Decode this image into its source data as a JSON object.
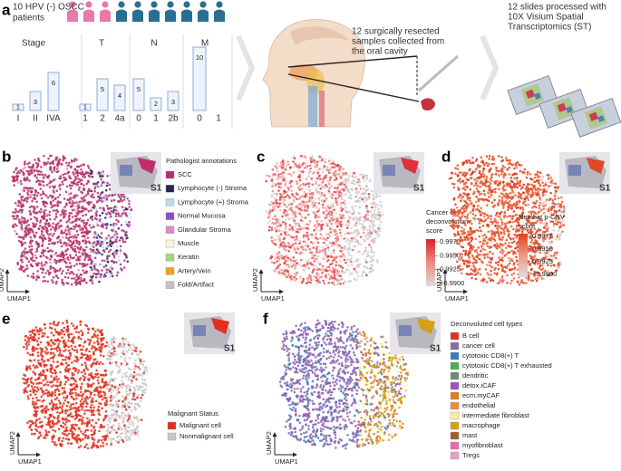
{
  "panel_labels": [
    "a",
    "b",
    "c",
    "d",
    "e",
    "f"
  ],
  "panel_a": {
    "patients": [
      "10 HPV (-) OSCC",
      "patients"
    ],
    "groups": [
      {
        "title": "Stage",
        "categories": [
          "I",
          "II",
          "IVA"
        ],
        "values": [
          1,
          3,
          6
        ]
      },
      {
        "title": "T",
        "categories": [
          "1",
          "2",
          "4a"
        ],
        "values": [
          1,
          5,
          4
        ]
      },
      {
        "title": "N",
        "categories": [
          "0",
          "1",
          "2b"
        ],
        "values": [
          5,
          2,
          3
        ]
      },
      {
        "title": "M",
        "categories": [
          "0",
          "1"
        ],
        "values": [
          10,
          null
        ]
      }
    ],
    "collection_text": [
      "12 surgically resected",
      "samples collected from",
      "the oral cavity"
    ],
    "slides_text": [
      "12 slides processed with",
      "10X Visium Spatial",
      "Transcriptomics (ST)"
    ]
  },
  "panel_b": {
    "inset_label": "S1",
    "legend_title": "Pathologist annotations",
    "legend": [
      {
        "name": "SCC",
        "color": "#b5306a"
      },
      {
        "name": "Lymphocyte (-) Stroma",
        "color": "#2b2552"
      },
      {
        "name": "Lymphocyte (+) Stroma",
        "color": "#bcdaf0"
      },
      {
        "name": "Normal Mucosa",
        "color": "#8a4fc0"
      },
      {
        "name": "Glandular Stroma",
        "color": "#d98cc8"
      },
      {
        "name": "Muscle",
        "color": "#fbf5df"
      },
      {
        "name": "Keratin",
        "color": "#9fd67f"
      },
      {
        "name": "Artery/Vein",
        "color": "#f2a11c"
      },
      {
        "name": "Fold/Artifact",
        "color": "#c2c2c2"
      }
    ],
    "axis_x": "UMAP1",
    "axis_y": "UMAP2"
  },
  "panel_c": {
    "inset_label": "S1",
    "colorbar_title": [
      "Cancer cell",
      "deconvolution",
      "score"
    ],
    "colorbar_ticks": [
      0.9975,
      {
        "value": 0.995,
        "label": "0.9950"
      },
      0.9925,
      {
        "value": 0.99,
        "label": "<0.9900"
      }
    ],
    "axis_x": "UMAP1",
    "axis_y": "UMAP2"
  },
  "panel_d": {
    "inset_label": "S1",
    "colorbar_title": [
      "Numbat p-CNV",
      "score"
    ],
    "colorbar_ticks": [
      0.9975,
      {
        "value": 0.995,
        "label": "0.9950"
      },
      0.9925,
      {
        "value": 0.99,
        "label": "<0.9900"
      }
    ],
    "axis_x": "UMAP1",
    "axis_y": "UMAP2"
  },
  "panel_e": {
    "inset_label": "S1",
    "legend_title": "Malignant Status",
    "legend": [
      {
        "name": "Malignant cell",
        "color": "#e0301e"
      },
      {
        "name": "Nonmalignant cell",
        "color": "#c8c8c8"
      }
    ],
    "axis_x": "UMAP1",
    "axis_y": "UMAP2"
  },
  "panel_f": {
    "inset_label": "S1",
    "legend_title": "Deconvoluted cell types",
    "legend": [
      {
        "name": "B cell",
        "color": "#e03020"
      },
      {
        "name": "cancer cell",
        "color": "#8a6aa8"
      },
      {
        "name": "cytotoxic CD8(+) T",
        "color": "#3b7bbf"
      },
      {
        "name": "cytotoxic CD8(+) T exhausted",
        "color": "#4caf50"
      },
      {
        "name": "dendritic",
        "color": "#6e8b6e"
      },
      {
        "name": "detox.iCAF",
        "color": "#9c4fbf"
      },
      {
        "name": "ecm.myCAF",
        "color": "#e07b1e"
      },
      {
        "name": "endothelial",
        "color": "#f08a3c"
      },
      {
        "name": "intermediate fibroblast",
        "color": "#f5f0a0"
      },
      {
        "name": "macrophage",
        "color": "#d4a017"
      },
      {
        "name": "mast",
        "color": "#a65a2a"
      },
      {
        "name": "myofibroblast",
        "color": "#e86aa8"
      },
      {
        "name": "Tregs",
        "color": "#e8a0c0"
      }
    ],
    "axis_x": "UMAP1",
    "axis_y": "UMAP2"
  }
}
